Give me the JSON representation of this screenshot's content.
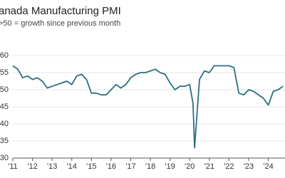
{
  "chart_data": {
    "type": "line",
    "title": "anada Manufacturing PMI",
    "subtitle": ">50 = growth since previous month",
    "x": [
      2011,
      2011.25,
      2011.5,
      2011.75,
      2012,
      2012.25,
      2012.5,
      2012.75,
      2013,
      2013.25,
      2013.5,
      2013.75,
      2014,
      2014.25,
      2014.5,
      2014.75,
      2015,
      2015.25,
      2015.5,
      2015.75,
      2016,
      2016.25,
      2016.5,
      2016.75,
      2017,
      2017.25,
      2017.5,
      2017.75,
      2018,
      2018.25,
      2018.5,
      2018.75,
      2019,
      2019.25,
      2019.5,
      2019.75,
      2020,
      2020.17,
      2020.25,
      2020.5,
      2020.75,
      2021,
      2021.25,
      2021.5,
      2021.75,
      2022,
      2022.25,
      2022.5,
      2022.75,
      2023,
      2023.25,
      2023.5,
      2023.75,
      2024,
      2024.25,
      2024.5,
      2024.75
    ],
    "series": [
      {
        "name": "PMI",
        "color": "#2b6f80",
        "values": [
          57,
          56,
          53.5,
          54,
          53,
          53.5,
          52.5,
          50.5,
          51,
          51.5,
          52,
          52.5,
          51.5,
          54,
          54.5,
          53,
          49,
          49,
          48.5,
          48.5,
          50,
          51.5,
          50.5,
          51.5,
          53.5,
          54.5,
          55,
          55,
          55.5,
          56,
          55,
          54.5,
          52,
          50,
          51,
          51,
          51.5,
          46,
          33,
          53,
          55.5,
          55,
          57,
          57,
          57,
          57,
          56.5,
          49,
          48.5,
          50,
          49.5,
          48.5,
          47.5,
          45.5,
          49.5,
          50,
          51
        ]
      }
    ],
    "xlim": [
      2011,
      2024.85
    ],
    "xticks": [
      {
        "value": 2011,
        "label": "'11"
      },
      {
        "value": 2012,
        "label": "'12"
      },
      {
        "value": 2013,
        "label": "'13"
      },
      {
        "value": 2014,
        "label": "'14"
      },
      {
        "value": 2015,
        "label": "'15"
      },
      {
        "value": 2016,
        "label": "'16"
      },
      {
        "value": 2017,
        "label": "'17"
      },
      {
        "value": 2018,
        "label": "'18"
      },
      {
        "value": 2019,
        "label": "'19"
      },
      {
        "value": 2020,
        "label": "'20"
      },
      {
        "value": 2021,
        "label": "'21"
      },
      {
        "value": 2022,
        "label": "'22"
      },
      {
        "value": 2023,
        "label": "'23"
      },
      {
        "value": 2024,
        "label": "'24"
      }
    ],
    "ylim": [
      30,
      60
    ],
    "yticks": [
      30,
      35,
      40,
      45,
      50,
      55,
      60
    ],
    "grid": true
  }
}
